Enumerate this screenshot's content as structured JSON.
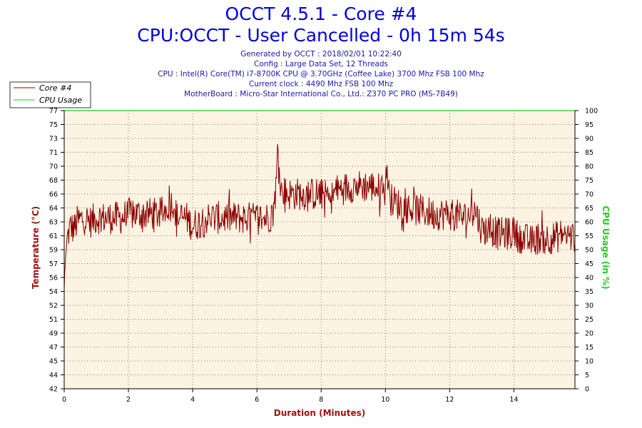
{
  "header": {
    "title": "OCCT 4.5.1 - Core #4",
    "subtitle": "CPU:OCCT - User Cancelled - 0h 15m 54s",
    "info_lines": [
      "Generated by OCCT : 2018/02/01 10:22:40",
      "Config : Large Data Set, 12 Threads",
      "CPU : Intel(R) Core(TM) i7-8700K CPU @ 3.70GHz (Coffee Lake) 3700 Mhz FSB 100 Mhz",
      "Current clock : 4490 Mhz FSB 100 Mhz",
      "MotherBoard : Micro-Star International Co., Ltd.: Z370 PC PRO (MS-7B49)"
    ]
  },
  "colors": {
    "core_line": "#8b0000",
    "cpu_line": "#22cc22",
    "plot_bg": "#fdf3e3",
    "left_axis_title": "#a01010",
    "right_axis_title": "#22cc22",
    "x_axis_title": "#a01010"
  },
  "chart_data": {
    "type": "line",
    "xlabel": "Duration (Minutes)",
    "ylabel_left": "Temperature (°C)",
    "ylabel_right": "CPU Usage (in %)",
    "xlim": [
      0,
      15.9
    ],
    "ylim_left": [
      42,
      77
    ],
    "ylim_right": [
      0,
      100
    ],
    "x_ticks": [
      "0",
      "2",
      "4",
      "6",
      "8",
      "10",
      "12",
      "14"
    ],
    "y_left_ticks": [
      "42",
      "44",
      "45",
      "47",
      "49",
      "51",
      "52",
      "54",
      "56",
      "57",
      "59",
      "61",
      "63",
      "64",
      "66",
      "68",
      "70",
      "71",
      "73",
      "75",
      "77"
    ],
    "y_right_ticks": [
      "0",
      "5",
      "10",
      "15",
      "20",
      "25",
      "30",
      "35",
      "40",
      "45",
      "50",
      "55",
      "60",
      "65",
      "70",
      "75",
      "80",
      "85",
      "90",
      "95",
      "100"
    ],
    "legend": [
      "Core #4",
      "CPU Usage"
    ],
    "series": [
      {
        "name": "Core #4",
        "axis": "left",
        "x": [
          0,
          0.02,
          0.05,
          0.1,
          0.2,
          0.3,
          0.4,
          0.6,
          0.8,
          1.0,
          1.2,
          1.5,
          1.8,
          2.0,
          2.5,
          3.0,
          3.4,
          3.5,
          3.8,
          4.0,
          4.5,
          5.0,
          5.5,
          6.0,
          6.3,
          6.5,
          6.6,
          6.65,
          6.75,
          7.0,
          7.5,
          8.0,
          8.3,
          8.5,
          9.0,
          9.5,
          10.0,
          10.05,
          10.1,
          10.5,
          11.0,
          11.5,
          12.0,
          12.5,
          12.8,
          13.0,
          13.3,
          13.5,
          14.0,
          14.5,
          14.8,
          15.0,
          15.3,
          15.5,
          15.9
        ],
        "y": [
          54.5,
          57,
          59,
          61,
          62.5,
          62,
          63,
          63.5,
          63,
          63.5,
          63.5,
          63.5,
          63.5,
          64,
          64,
          64,
          65.5,
          63.5,
          63.5,
          62.5,
          63.5,
          63.5,
          63.5,
          63.5,
          63.5,
          64,
          67.5,
          72.5,
          67,
          66.5,
          66.5,
          66.5,
          66,
          67,
          67.5,
          67.5,
          67,
          70.5,
          66,
          65,
          64.5,
          64,
          64,
          63.5,
          64.5,
          62,
          62,
          61.5,
          61.5,
          60.5,
          61,
          61,
          61,
          61.5,
          61
        ],
        "approximate": true
      },
      {
        "name": "CPU Usage",
        "axis": "right",
        "x": [
          0,
          15.9
        ],
        "y": [
          100,
          100
        ]
      }
    ]
  }
}
